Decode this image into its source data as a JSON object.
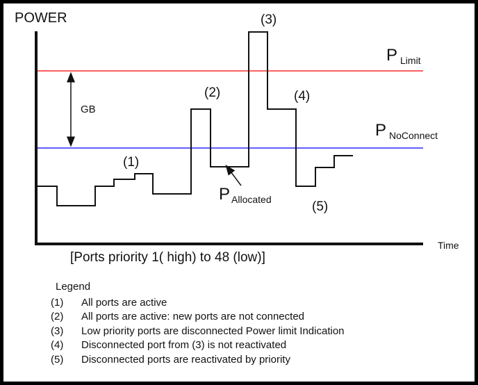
{
  "diagram": {
    "y_label": "POWER",
    "x_label": "Time",
    "axis_caption": "[Ports priority 1( high) to 48 (low)]",
    "limit_label": {
      "main": "P",
      "sub": "Limit"
    },
    "noconnect_label": {
      "main": "P",
      "sub": "NoConnect"
    },
    "allocated_label": {
      "main": "P",
      "sub": "Allocated"
    },
    "gb_label": "GB",
    "markers": {
      "m1": "(1)",
      "m2": "(2)",
      "m3": "(3)",
      "m4": "(4)",
      "m5": "(5)"
    },
    "colors": {
      "limit_line": "#ff2a2a",
      "noconnect_line": "#2a2aff",
      "ink": "#111111"
    }
  },
  "legend": {
    "title": "Legend",
    "items": [
      {
        "num": "(1)",
        "text": "All ports are active"
      },
      {
        "num": "(2)",
        "text": "All ports are active: new ports are not connected"
      },
      {
        "num": "(3)",
        "text": "Low priority ports are disconnected   Power limit Indication"
      },
      {
        "num": "(4)",
        "text": "Disconnected port from (3) is not reactivated"
      },
      {
        "num": "(5)",
        "text": "Disconnected ports are reactivated by priority"
      }
    ]
  }
}
